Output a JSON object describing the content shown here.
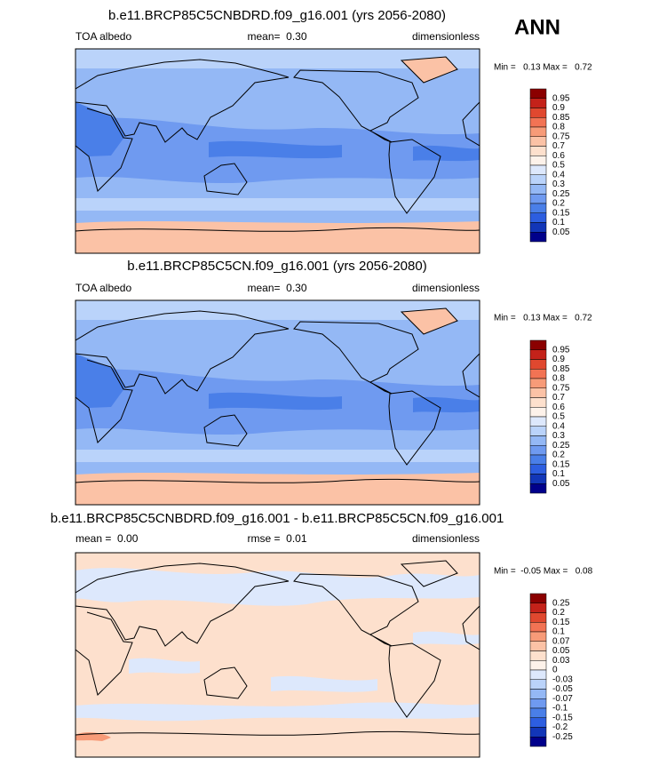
{
  "header": {
    "season": "ANN"
  },
  "panels": [
    {
      "title": "b.e11.BRCP85C5CNBDRD.f09_g16.001 (yrs 2056-2080)",
      "left": "TOA albedo",
      "center": "mean=  0.30",
      "right": "dimensionless",
      "range": "Min =   0.13 Max =   0.72",
      "colorbar": {
        "labels": [
          "0.95",
          "0.9",
          "0.85",
          "0.8",
          "0.75",
          "0.7",
          "0.6",
          "0.5",
          "0.4",
          "0.3",
          "0.25",
          "0.2",
          "0.15",
          "0.1",
          "0.05"
        ],
        "colors": [
          "#8b0000",
          "#c4221a",
          "#e0482f",
          "#f27354",
          "#f79b78",
          "#fbc2a6",
          "#fde0cd",
          "#fdf2ea",
          "#dde8fc",
          "#bad3fa",
          "#94b8f5",
          "#6f9af0",
          "#4a7fe8",
          "#2d5ee0",
          "#1236b8",
          "#00008b"
        ]
      }
    },
    {
      "title": "b.e11.BRCP85C5CN.f09_g16.001 (yrs 2056-2080)",
      "left": "TOA albedo",
      "center": "mean=  0.30",
      "right": "dimensionless",
      "range": "Min =   0.13 Max =   0.72",
      "colorbar": {
        "labels": [
          "0.95",
          "0.9",
          "0.85",
          "0.8",
          "0.75",
          "0.7",
          "0.6",
          "0.5",
          "0.4",
          "0.3",
          "0.25",
          "0.2",
          "0.15",
          "0.1",
          "0.05"
        ],
        "colors": [
          "#8b0000",
          "#c4221a",
          "#e0482f",
          "#f27354",
          "#f79b78",
          "#fbc2a6",
          "#fde0cd",
          "#fdf2ea",
          "#dde8fc",
          "#bad3fa",
          "#94b8f5",
          "#6f9af0",
          "#4a7fe8",
          "#2d5ee0",
          "#1236b8",
          "#00008b"
        ]
      }
    },
    {
      "title": "b.e11.BRCP85C5CNBDRD.f09_g16.001 - b.e11.BRCP85C5CN.f09_g16.001",
      "left": "mean =  0.00",
      "center": "rmse =  0.01",
      "right": "dimensionless",
      "range": "Min =  -0.05 Max =   0.08",
      "colorbar": {
        "labels": [
          "0.25",
          "0.2",
          "0.15",
          "0.1",
          "0.07",
          "0.05",
          "0.03",
          "0",
          "-0.03",
          "-0.05",
          "-0.07",
          "-0.1",
          "-0.15",
          "-0.2",
          "-0.25"
        ],
        "colors": [
          "#8b0000",
          "#c4221a",
          "#e0482f",
          "#f27354",
          "#f79b78",
          "#fbc2a6",
          "#fde0cd",
          "#fdf2ea",
          "#dde8fc",
          "#bad3fa",
          "#94b8f5",
          "#6f9af0",
          "#4a7fe8",
          "#2d5ee0",
          "#1236b8",
          "#00008b"
        ]
      }
    }
  ]
}
